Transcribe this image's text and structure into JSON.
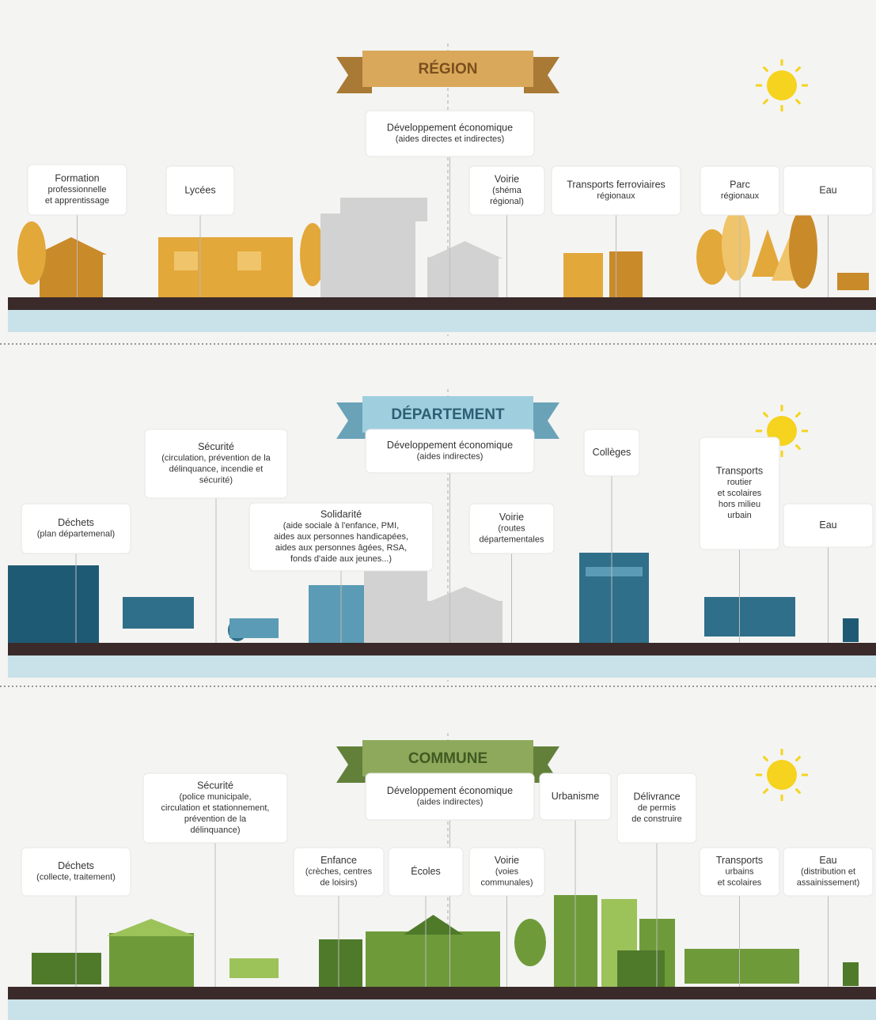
{
  "sections": [
    {
      "title": "RÉGION",
      "callouts": [
        {
          "lines": [
            "Formation",
            "professionnelle",
            "et apprentissage"
          ]
        },
        {
          "lines": [
            "Lycées"
          ]
        },
        {
          "lines": [
            "Développement économique",
            "(aides directes et indirectes)"
          ]
        },
        {
          "lines": [
            "Voirie",
            "(shéma",
            "régional)"
          ]
        },
        {
          "lines": [
            "Transports ferroviaires",
            "régionaux"
          ]
        },
        {
          "lines": [
            "Parc",
            "régionaux"
          ]
        },
        {
          "lines": [
            "Eau"
          ]
        }
      ]
    },
    {
      "title": "DÉPARTEMENT",
      "callouts": [
        {
          "lines": [
            "Sécurité",
            "(circulation, prévention de la",
            "délinquance, incendie et",
            "sécurité)"
          ]
        },
        {
          "lines": [
            "Déchets",
            "(plan départemenal)"
          ]
        },
        {
          "lines": [
            "Solidarité",
            "(aide sociale à l'enfance, PMI,",
            "aides aux personnes handicapées,",
            "aides aux personnes âgées, RSA,",
            "fonds d'aide aux jeunes...)"
          ]
        },
        {
          "lines": [
            "Développement économique",
            "(aides indirectes)"
          ]
        },
        {
          "lines": [
            "Voirie",
            "(routes",
            "départementales"
          ]
        },
        {
          "lines": [
            "Collèges"
          ]
        },
        {
          "lines": [
            "Transports",
            "routier",
            "et scolaires",
            "hors milieu",
            "urbain"
          ]
        },
        {
          "lines": [
            "Eau"
          ]
        }
      ]
    },
    {
      "title": "COMMUNE",
      "callouts": [
        {
          "lines": [
            "Sécurité",
            "(police municipale,",
            "circulation et stationnement,",
            "prévention de la",
            "délinquance)"
          ]
        },
        {
          "lines": [
            "Déchets",
            "(collecte, traitement)"
          ]
        },
        {
          "lines": [
            "Développement économique",
            "(aides indirectes)"
          ]
        },
        {
          "lines": [
            "Urbanisme"
          ]
        },
        {
          "lines": [
            "Délivrance",
            "de permis",
            "de construire"
          ]
        },
        {
          "lines": [
            "Enfance",
            "(crèches, centres",
            "de loisirs)"
          ]
        },
        {
          "lines": [
            "Écoles"
          ]
        },
        {
          "lines": [
            "Voirie",
            "(voies",
            "communales)"
          ]
        },
        {
          "lines": [
            "Transports",
            "urbains",
            "et scolaires"
          ]
        },
        {
          "lines": [
            "Eau",
            "(distribution et",
            "assainissement)"
          ]
        }
      ]
    }
  ]
}
